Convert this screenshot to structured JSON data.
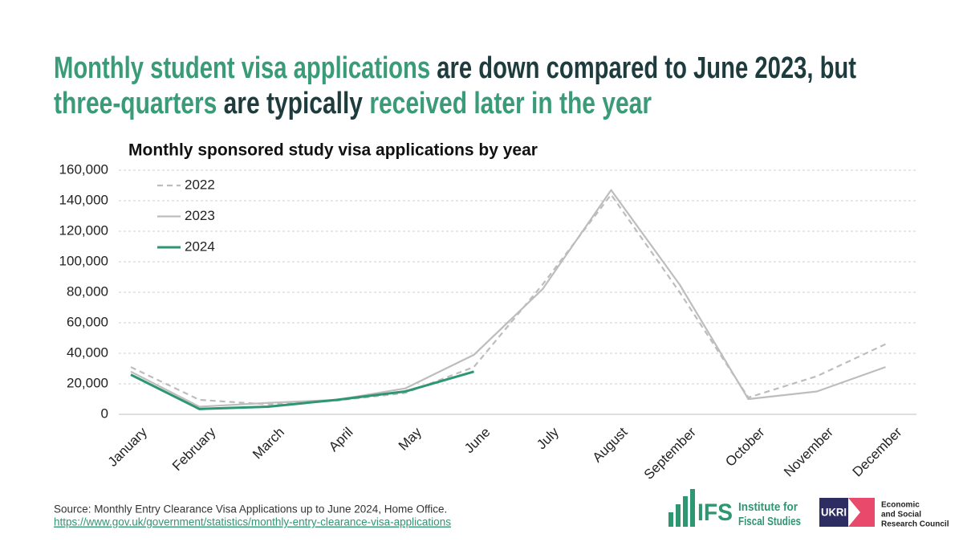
{
  "headline": [
    [
      {
        "text": "Monthly student visa applications",
        "color": "#3a9b78"
      },
      {
        "text": " are down compared to June 2023, but",
        "color": "#1e3b3e"
      }
    ],
    [
      {
        "text": "three-quarters",
        "color": "#3a9b78"
      },
      {
        "text": " are typically ",
        "color": "#1e3b3e"
      },
      {
        "text": "received later in the year",
        "color": "#3a9b78"
      }
    ]
  ],
  "chart_data": {
    "type": "line",
    "title": "Monthly sponsored study visa applications by year",
    "categories": [
      "January",
      "February",
      "March",
      "April",
      "May",
      "June",
      "July",
      "August",
      "September",
      "October",
      "November",
      "December"
    ],
    "series": [
      {
        "name": "2022",
        "color": "#bdbdbd",
        "dashed": true,
        "values": [
          31000,
          9500,
          6500,
          9000,
          14000,
          31000,
          85000,
          144000,
          80000,
          11000,
          25000,
          46000
        ]
      },
      {
        "name": "2023",
        "color": "#bdbdbd",
        "dashed": false,
        "values": [
          28000,
          5000,
          7500,
          9500,
          17000,
          39000,
          82000,
          147000,
          85000,
          10000,
          15000,
          31000
        ]
      },
      {
        "name": "2024",
        "color": "#2e9670",
        "dashed": false,
        "values": [
          26000,
          3500,
          5000,
          9500,
          15000,
          28000,
          null,
          null,
          null,
          null,
          null,
          null
        ]
      }
    ],
    "ylim": [
      0,
      160000
    ],
    "yticks": [
      0,
      {
        "value": 20000,
        "label": "20,000"
      },
      {
        "value": 40000,
        "label": "40,000"
      },
      {
        "value": 60000,
        "label": "60,000"
      },
      {
        "value": 80000,
        "label": "80,000"
      },
      {
        "value": 100000,
        "label": "100,000"
      },
      {
        "value": 120000,
        "label": "120,000"
      },
      {
        "value": 140000,
        "label": "140,000"
      },
      {
        "value": 160000,
        "label": "160,000"
      }
    ],
    "grid": true,
    "legend": "upper left"
  },
  "source": "Source: Monthly Entry Clearance Visa Applications up to June 2024, Home Office.",
  "source_link": "https://www.gov.uk/government/statistics/monthly-entry-clearance-visa-applications",
  "ifs_logo": {
    "mark": "IFS",
    "name_lines": [
      "Institute for",
      "Fiscal Studies"
    ]
  },
  "esrc_logo": {
    "mark": "UKRI",
    "name_lines": [
      "Economic",
      "and Social",
      "Research Council"
    ]
  }
}
